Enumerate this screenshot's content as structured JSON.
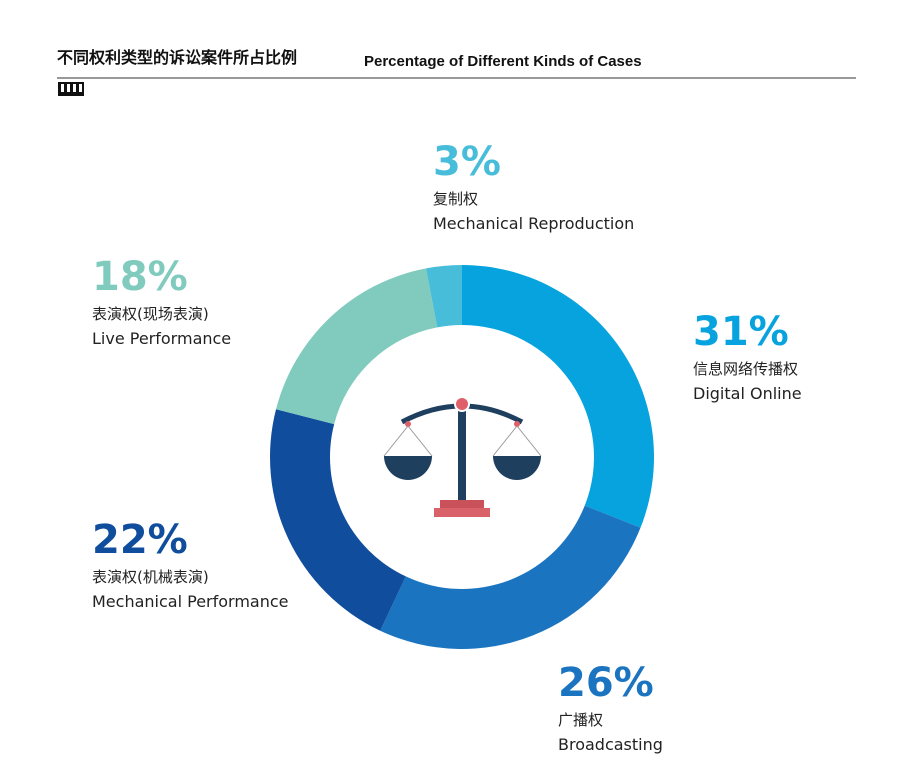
{
  "chart_data": {
    "type": "donut",
    "title": "不同权利类型的诉讼案件所占比例",
    "subtitle": "Percentage of Different Kinds of Cases",
    "categories": [
      "Digital Online",
      "Broadcasting",
      "Mechanical Performance",
      "Live Performance",
      "Mechanical Reproduction"
    ],
    "categories_zh": [
      "信息网络传播权",
      "广播权",
      "表演权(机械表演)",
      "表演权(现场表演)",
      "复制权"
    ],
    "values": [
      31,
      26,
      22,
      18,
      3
    ],
    "value_labels": [
      "31%",
      "26%",
      "22%",
      "18%",
      "3%"
    ],
    "colors": [
      "#07a3df",
      "#1b74c0",
      "#104d9c",
      "#80cbbe",
      "#47bdd9"
    ]
  }
}
